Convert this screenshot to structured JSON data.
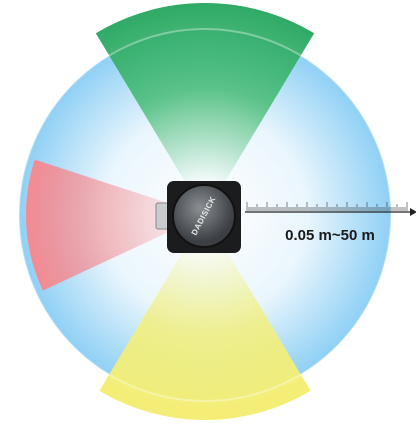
{
  "device": {
    "brand": "DADISICK"
  },
  "range_label": "0.05 m~50 m"
}
